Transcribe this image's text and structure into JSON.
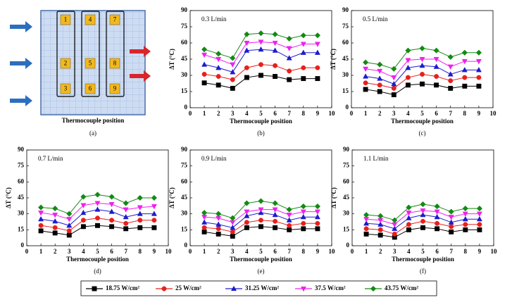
{
  "diagram": {
    "cells": [
      "1",
      "2",
      "3",
      "4",
      "5",
      "6",
      "7",
      "8",
      "9"
    ],
    "xlabel": "Thermocouple position",
    "caption": "(a)"
  },
  "legend": [
    {
      "name": "18.75 W/cm²",
      "color": "#000000",
      "marker": "square"
    },
    {
      "name": "25 W/cm²",
      "color": "#e8201c",
      "marker": "circle"
    },
    {
      "name": "31.25 W/cm²",
      "color": "#1c1ccc",
      "marker": "triangle-up"
    },
    {
      "name": "37.5 W/cm²",
      "color": "#ee22ee",
      "marker": "triangle-down"
    },
    {
      "name": "43.75 W/cm²",
      "color": "#138a13",
      "marker": "diamond"
    }
  ],
  "chart_data": [
    {
      "type": "line",
      "title": "0.3 L/min",
      "caption": "(b)",
      "xlabel": "Thermocouple position",
      "ylabel": "ΔT (°C)",
      "x": [
        1,
        2,
        3,
        4,
        5,
        6,
        7,
        8,
        9
      ],
      "xlim": [
        0,
        10
      ],
      "xticks": [
        0,
        1,
        2,
        3,
        4,
        5,
        6,
        7,
        8,
        9,
        10
      ],
      "ylim": [
        0,
        90
      ],
      "yticks": [
        0,
        15,
        30,
        45,
        60,
        75,
        90
      ],
      "series": [
        {
          "values": [
            23,
            21,
            18,
            28,
            30,
            29,
            26,
            27,
            27
          ]
        },
        {
          "values": [
            31,
            29,
            26,
            37,
            40,
            39,
            34,
            37,
            37
          ]
        },
        {
          "values": [
            40,
            37,
            33,
            53,
            54,
            53,
            46,
            51,
            51
          ]
        },
        {
          "values": [
            49,
            45,
            40,
            60,
            61,
            60,
            55,
            59,
            59
          ]
        },
        {
          "values": [
            54,
            50,
            46,
            68,
            69,
            68,
            64,
            67,
            67
          ]
        }
      ]
    },
    {
      "type": "line",
      "title": "0.5 L/min",
      "caption": "(c)",
      "xlabel": "Thermocouple position",
      "ylabel": "ΔT (°C)",
      "x": [
        1,
        2,
        3,
        4,
        5,
        6,
        7,
        8,
        9
      ],
      "xlim": [
        0,
        10
      ],
      "xticks": [
        0,
        1,
        2,
        3,
        4,
        5,
        6,
        7,
        8,
        9,
        10
      ],
      "ylim": [
        0,
        90
      ],
      "yticks": [
        0,
        15,
        30,
        45,
        60,
        75,
        90
      ],
      "series": [
        {
          "values": [
            17,
            15,
            12,
            21,
            22,
            21,
            18,
            20,
            20
          ]
        },
        {
          "values": [
            23,
            21,
            18,
            28,
            31,
            29,
            25,
            28,
            28
          ]
        },
        {
          "values": [
            29,
            27,
            22,
            37,
            39,
            38,
            31,
            35,
            35
          ]
        },
        {
          "values": [
            36,
            34,
            28,
            44,
            45,
            45,
            38,
            43,
            43
          ]
        },
        {
          "values": [
            42,
            40,
            36,
            53,
            55,
            53,
            47,
            51,
            51
          ]
        }
      ]
    },
    {
      "type": "line",
      "title": "0.7 L/min",
      "caption": "(d)",
      "xlabel": "Thermocouple position",
      "ylabel": "ΔT (°C)",
      "x": [
        1,
        2,
        3,
        4,
        5,
        6,
        7,
        8,
        9
      ],
      "xlim": [
        0,
        10
      ],
      "xticks": [
        0,
        1,
        2,
        3,
        4,
        5,
        6,
        7,
        8,
        9,
        10
      ],
      "ylim": [
        0,
        90
      ],
      "yticks": [
        0,
        15,
        30,
        45,
        60,
        75,
        90
      ],
      "series": [
        {
          "values": [
            14,
            12,
            10,
            18,
            19,
            18,
            16,
            17,
            17
          ]
        },
        {
          "values": [
            19,
            17,
            14,
            24,
            26,
            24,
            21,
            24,
            24
          ]
        },
        {
          "values": [
            25,
            23,
            19,
            31,
            34,
            32,
            27,
            30,
            30
          ]
        },
        {
          "values": [
            31,
            29,
            25,
            38,
            40,
            39,
            34,
            36,
            37
          ]
        },
        {
          "values": [
            36,
            35,
            30,
            46,
            48,
            46,
            40,
            45,
            45
          ]
        }
      ]
    },
    {
      "type": "line",
      "title": "0.9 L/min",
      "caption": "(e)",
      "xlabel": "Thermocouple position",
      "ylabel": "ΔT (°C)",
      "x": [
        1,
        2,
        3,
        4,
        5,
        6,
        7,
        8,
        9
      ],
      "xlim": [
        0,
        10
      ],
      "xticks": [
        0,
        1,
        2,
        3,
        4,
        5,
        6,
        7,
        8,
        9,
        10
      ],
      "ylim": [
        0,
        90
      ],
      "yticks": [
        0,
        15,
        30,
        45,
        60,
        75,
        90
      ],
      "series": [
        {
          "values": [
            13,
            11,
            9,
            17,
            18,
            17,
            15,
            16,
            16
          ]
        },
        {
          "values": [
            17,
            16,
            13,
            22,
            24,
            23,
            19,
            21,
            21
          ]
        },
        {
          "values": [
            22,
            20,
            17,
            28,
            31,
            29,
            24,
            27,
            27
          ]
        },
        {
          "values": [
            27,
            26,
            22,
            32,
            34,
            34,
            29,
            32,
            32
          ]
        },
        {
          "values": [
            31,
            30,
            26,
            40,
            42,
            40,
            34,
            37,
            37
          ]
        }
      ]
    },
    {
      "type": "line",
      "title": "1.1 L/min",
      "caption": "(f)",
      "xlabel": "Thermocouple position",
      "ylabel": "ΔT (°C)",
      "x": [
        1,
        2,
        3,
        4,
        5,
        6,
        7,
        8,
        9
      ],
      "xlim": [
        0,
        10
      ],
      "xticks": [
        0,
        1,
        2,
        3,
        4,
        5,
        6,
        7,
        8,
        9,
        10
      ],
      "ylim": [
        0,
        90
      ],
      "yticks": [
        0,
        15,
        30,
        45,
        60,
        75,
        90
      ],
      "series": [
        {
          "values": [
            11,
            10,
            8,
            15,
            17,
            16,
            13,
            15,
            15
          ]
        },
        {
          "values": [
            16,
            15,
            11,
            20,
            23,
            21,
            18,
            20,
            20
          ]
        },
        {
          "values": [
            21,
            20,
            16,
            26,
            29,
            27,
            22,
            25,
            25
          ]
        },
        {
          "values": [
            25,
            24,
            20,
            31,
            33,
            32,
            27,
            30,
            30
          ]
        },
        {
          "values": [
            29,
            28,
            24,
            36,
            39,
            37,
            32,
            35,
            35
          ]
        }
      ]
    }
  ]
}
